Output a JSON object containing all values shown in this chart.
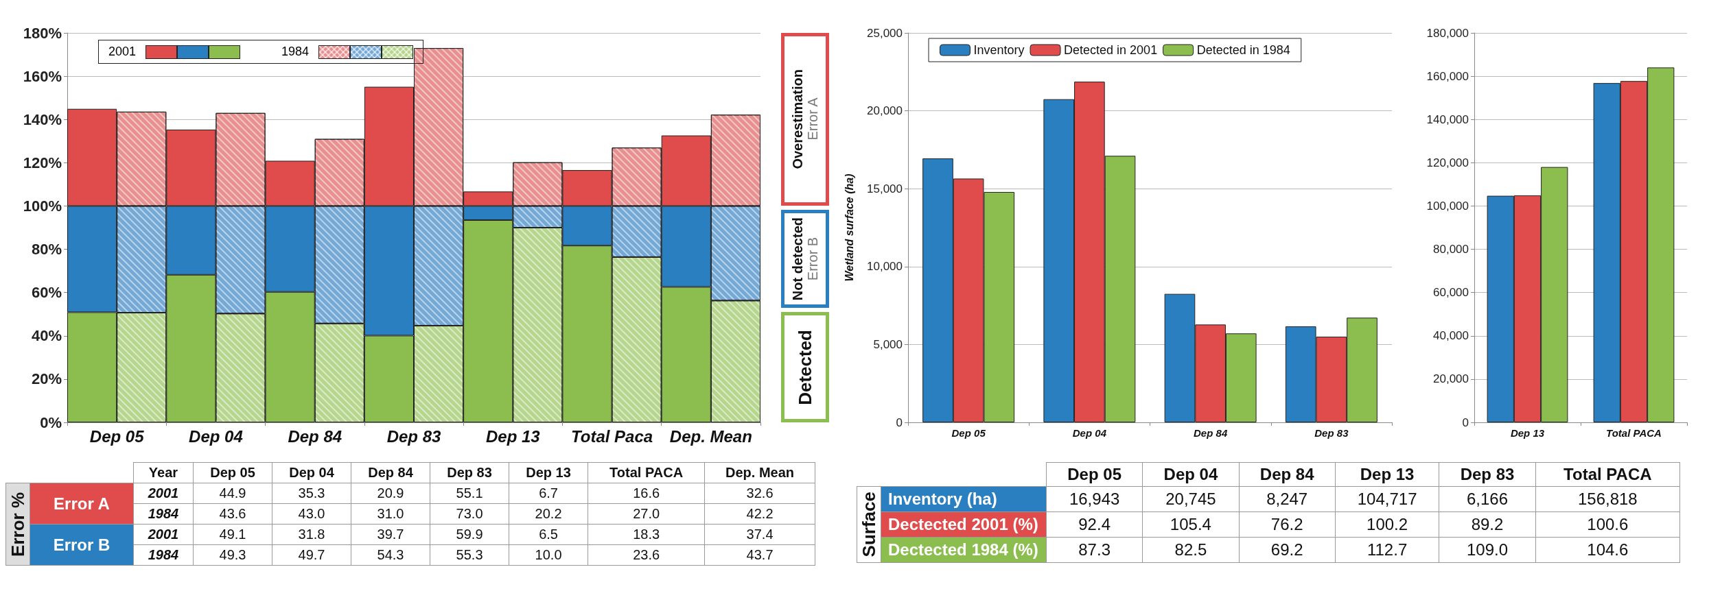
{
  "chart_data": [
    {
      "type": "bar",
      "stacked": true,
      "categories": [
        "Dep 05",
        null,
        "Dep 04",
        null,
        "Dep 84",
        null,
        "Dep 83",
        null,
        "Dep 13",
        null,
        "Total Paca",
        null,
        "Dep. Mean",
        null
      ],
      "annotations": [
        "2001",
        "1984"
      ],
      "ylim": [
        0,
        180
      ],
      "yticks": [
        {
          "value": 0,
          "label": "0%"
        },
        {
          "value": 20,
          "label": "20%"
        },
        {
          "value": 40,
          "label": "40%"
        },
        {
          "value": 60,
          "label": "60%"
        },
        {
          "value": 80,
          "label": "80%"
        },
        {
          "value": 100,
          "label": "100%"
        },
        {
          "value": 120,
          "label": "120%"
        },
        {
          "value": 140,
          "label": "140%"
        },
        {
          "value": 160,
          "label": "160%"
        },
        {
          "value": 180,
          "label": "180%"
        }
      ],
      "grid": "y",
      "legend": "right",
      "series": [
        {
          "name": "Detected",
          "color": "#8cbd4f",
          "colors": [
            "#8cbd4f",
            "#b6d68e",
            "#8cbd4f",
            "#b6d68e",
            "#8cbd4f",
            "#b6d68e",
            "#8cbd4f",
            "#b6d68e",
            "#8cbd4f",
            "#b6d68e",
            "#8cbd4f",
            "#b6d68e",
            "#8cbd4f",
            "#b6d68e"
          ],
          "values": [
            50.9,
            50.7,
            68.2,
            50.3,
            60.3,
            45.7,
            40.1,
            44.7,
            93.5,
            90.0,
            81.7,
            76.4,
            62.6,
            56.3
          ]
        },
        {
          "name": "Not detected\nError B",
          "color": "#2a7fc1",
          "colors": [
            "#2a7fc1",
            "#74a9d6",
            "#2a7fc1",
            "#74a9d6",
            "#2a7fc1",
            "#74a9d6",
            "#2a7fc1",
            "#74a9d6",
            "#2a7fc1",
            "#74a9d6",
            "#2a7fc1",
            "#74a9d6",
            "#2a7fc1",
            "#74a9d6"
          ],
          "values": [
            49.1,
            49.3,
            31.8,
            49.7,
            39.7,
            54.3,
            59.9,
            55.3,
            6.5,
            10.0,
            18.3,
            23.6,
            37.4,
            43.7
          ]
        },
        {
          "name": "Overestimation\nError A",
          "color": "#e04c4c",
          "colors": [
            "#e04c4c",
            "#e89090",
            "#e04c4c",
            "#e89090",
            "#e04c4c",
            "#e89090",
            "#e04c4c",
            "#e89090",
            "#e04c4c",
            "#e89090",
            "#e04c4c",
            "#e89090",
            "#e04c4c",
            "#e89090"
          ],
          "values": [
            44.9,
            43.6,
            35.3,
            43.0,
            20.9,
            31.0,
            55.1,
            73.0,
            6.7,
            20.2,
            16.6,
            27.0,
            32.6,
            42.2
          ]
        }
      ]
    },
    {
      "type": "bar",
      "categories": [
        "Dep 05",
        "Dep 04",
        "Dep 84",
        "Dep 83"
      ],
      "ylabel": "Wetland surface (ha)",
      "ylim": [
        0,
        25000
      ],
      "yticks": [
        0,
        {
          "value": 5000,
          "label": "5,000"
        },
        {
          "value": 10000,
          "label": "10,000"
        },
        {
          "value": 15000,
          "label": "15,000"
        },
        {
          "value": 20000,
          "label": "20,000"
        },
        {
          "value": 25000,
          "label": "25,000"
        }
      ],
      "grid": "y",
      "legend": "top left",
      "series": [
        {
          "name": "Inventory",
          "color": "#2a7fc1",
          "values": [
            16943,
            20745,
            8247,
            6166
          ]
        },
        {
          "name": "Detected in 2001",
          "color": "#e04c4c",
          "values": [
            15650,
            21870,
            6280,
            5500
          ]
        },
        {
          "name": "Detected in 1984",
          "color": "#8cbd4f",
          "values": [
            14790,
            17110,
            5710,
            6720
          ]
        }
      ]
    },
    {
      "type": "bar",
      "categories": [
        "Dep 13",
        "Total PACA"
      ],
      "ylim": [
        0,
        180000
      ],
      "yticks": [
        0,
        {
          "value": 20000,
          "label": "20,000"
        },
        {
          "value": 40000,
          "label": "40,000"
        },
        {
          "value": 60000,
          "label": "60,000"
        },
        {
          "value": 80000,
          "label": "80,000"
        },
        {
          "value": 100000,
          "label": "100,000"
        },
        {
          "value": 120000,
          "label": "120,000"
        },
        {
          "value": 140000,
          "label": "140,000"
        },
        {
          "value": 160000,
          "label": "160,000"
        },
        {
          "value": 180000,
          "label": "180,000"
        }
      ],
      "grid": "y",
      "series": [
        {
          "color": "#2a7fc1",
          "values": [
            104717,
            156818
          ]
        },
        {
          "color": "#e04c4c",
          "values": [
            104926,
            157759
          ]
        },
        {
          "color": "#8cbd4f",
          "values": [
            118016,
            164032
          ]
        }
      ]
    },
    {
      "type": "heatmap",
      "ylabel": "Error %",
      "annotations": [
        "Year",
        "Error A",
        "Error B"
      ],
      "categories": [
        "Dep 05",
        "Dep 04",
        "Dep 84",
        "Dep 83",
        "Dep 13",
        "Total PACA",
        "Dep. Mean"
      ],
      "y_categories": [
        "2001",
        "1984",
        "2001",
        "1984"
      ],
      "cells": [
        [
          44.9,
          35.3,
          20.9,
          55.1,
          6.7,
          16.6,
          32.6
        ],
        [
          43.6,
          43.0,
          31.0,
          73.0,
          20.2,
          27.0,
          42.2
        ],
        [
          49.1,
          31.8,
          39.7,
          59.9,
          6.5,
          18.3,
          37.4
        ],
        [
          49.3,
          49.7,
          54.3,
          55.3,
          10.0,
          23.6,
          43.7
        ]
      ],
      "cell_labels": [
        [
          "44.9",
          "35.3",
          "20.9",
          "55.1",
          "6.7",
          "16.6",
          "32.6"
        ],
        [
          "43.6",
          "43.0",
          "31.0",
          "73.0",
          "20.2",
          "27.0",
          "42.2"
        ],
        [
          "49.1",
          "31.8",
          "39.7",
          "59.9",
          "6.5",
          "18.3",
          "37.4"
        ],
        [
          "49.3",
          "49.7",
          "54.3",
          "55.3",
          "10.0",
          "23.6",
          "43.7"
        ]
      ]
    },
    {
      "type": "heatmap",
      "ylabel": "Surface",
      "categories": [
        "Dep 05",
        "Dep 04",
        "Dep 84",
        "Dep 13",
        "Dep 83",
        "Total PACA"
      ],
      "y_categories": [
        "Inventory (ha)",
        "Dectected 2001 (%)",
        "Dectected 1984 (%)"
      ],
      "cells": [
        [
          16943,
          20745,
          8247,
          104717,
          6166,
          156818
        ],
        [
          92.4,
          105.4,
          76.2,
          100.2,
          89.2,
          100.6
        ],
        [
          87.3,
          82.5,
          69.2,
          112.7,
          109.0,
          104.6
        ]
      ],
      "cell_labels": [
        [
          "16,943",
          "20,745",
          "8,247",
          "104,717",
          "6,166",
          "156,818"
        ],
        [
          "92.4",
          "105.4",
          "76.2",
          "100.2",
          "89.2",
          "100.6"
        ],
        [
          "87.3",
          "82.5",
          "69.2",
          "112.7",
          "109.0",
          "104.6"
        ]
      ]
    }
  ]
}
